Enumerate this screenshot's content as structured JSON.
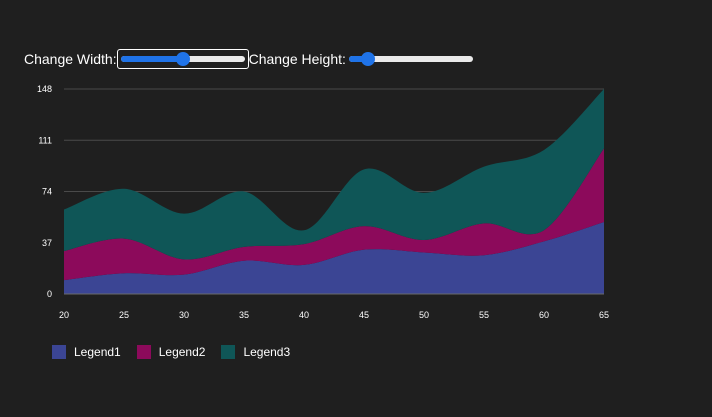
{
  "controls": {
    "width_label": "Change Width:",
    "height_label": "Change Height:",
    "width_slider_value": 0.5,
    "height_slider_value": 0.15
  },
  "chart_data": {
    "type": "area",
    "stacked": true,
    "smooth": true,
    "x": [
      20,
      25,
      30,
      35,
      40,
      45,
      50,
      55,
      60,
      65
    ],
    "series": [
      {
        "name": "Legend1",
        "color": "#3b4594",
        "values": [
          10,
          15,
          14,
          24,
          21,
          32,
          30,
          28,
          38,
          52
        ]
      },
      {
        "name": "Legend2",
        "color": "#8c0a5b",
        "values": [
          21,
          25,
          11,
          10,
          15,
          17,
          9,
          23,
          8,
          53
        ]
      },
      {
        "name": "Legend3",
        "color": "#0f5657",
        "values": [
          30,
          36,
          33,
          40,
          10,
          41,
          34,
          41,
          58,
          43
        ]
      }
    ],
    "xlim": [
      20,
      65
    ],
    "ylim": [
      0,
      148
    ],
    "yticks": [
      0,
      37,
      74,
      111,
      148
    ],
    "xticks": [
      20,
      25,
      30,
      35,
      40,
      45,
      50,
      55,
      60,
      65
    ],
    "grid": "horizontal",
    "legend_position": "bottom-left"
  }
}
